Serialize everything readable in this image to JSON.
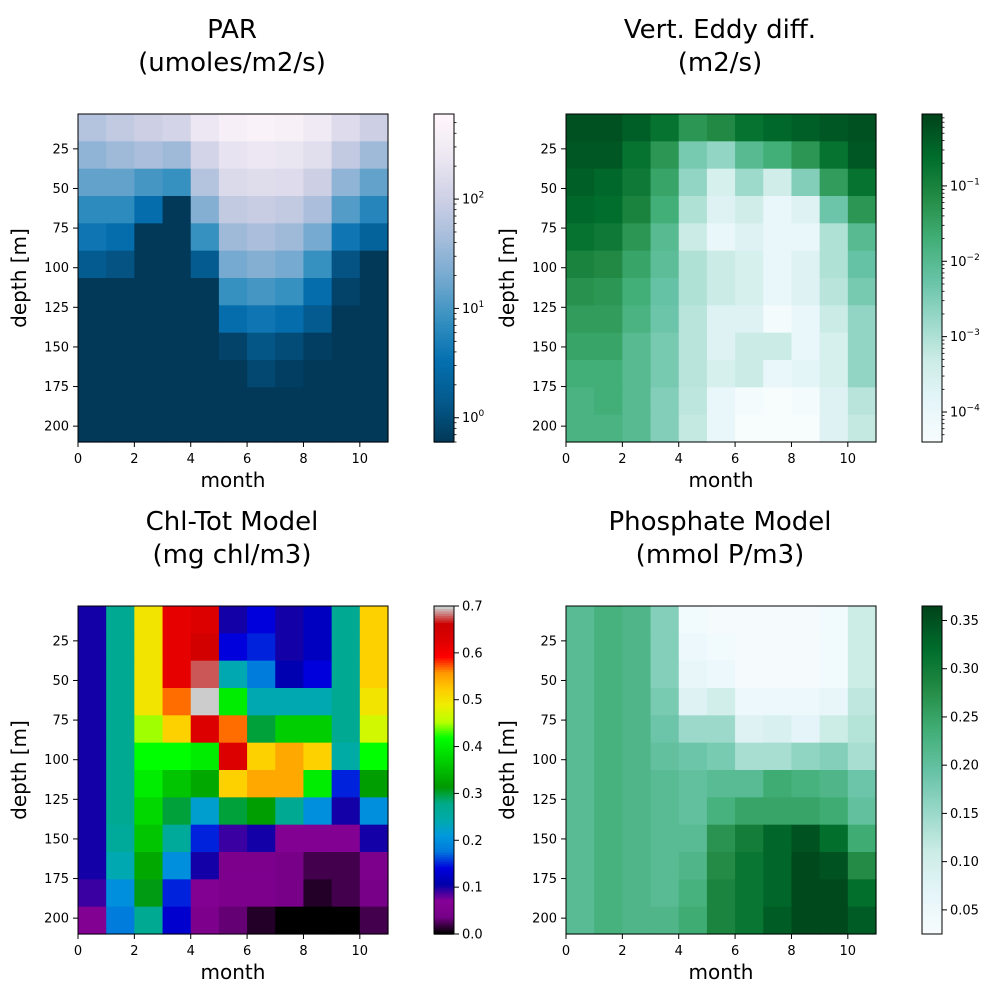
{
  "chart_data": [
    {
      "type": "heatmap",
      "title_line1": "PAR",
      "title_line2": "(umoles/m2/s)",
      "xlabel": "month",
      "ylabel": "depth [m]",
      "x_ticks": [
        "0",
        "2",
        "4",
        "6",
        "8",
        "10"
      ],
      "y_ticks": [
        "25",
        "50",
        "75",
        "100",
        "125",
        "150",
        "175",
        "200"
      ],
      "xlim": [
        0,
        11
      ],
      "ylim": [
        210,
        3
      ],
      "colormap": "PuBu_r",
      "colorscale": "log",
      "colorbar_range": [
        0.6,
        600
      ],
      "colorbar_ticks": [
        {
          "value": 1,
          "base": "10",
          "exp": "0"
        },
        {
          "value": 10,
          "base": "10",
          "exp": "1"
        },
        {
          "value": 100,
          "base": "10",
          "exp": "2"
        }
      ],
      "values": [
        [
          60,
          80,
          100,
          120,
          250,
          400,
          450,
          420,
          300,
          160,
          100
        ],
        [
          30,
          40,
          50,
          40,
          120,
          220,
          250,
          230,
          180,
          80,
          40
        ],
        [
          15,
          15,
          10,
          8,
          60,
          150,
          170,
          160,
          100,
          30,
          15
        ],
        [
          7,
          7,
          3,
          0.6,
          25,
          80,
          90,
          80,
          50,
          12,
          6
        ],
        [
          4,
          3,
          0.6,
          0.6,
          8,
          40,
          50,
          40,
          20,
          4,
          2
        ],
        [
          1.5,
          1.2,
          0.6,
          0.6,
          1.5,
          20,
          25,
          20,
          8,
          1.2,
          0.6
        ],
        [
          0.6,
          0.6,
          0.6,
          0.6,
          0.6,
          8,
          10,
          8,
          3,
          0.8,
          0.6
        ],
        [
          0.6,
          0.6,
          0.6,
          0.6,
          0.6,
          3,
          4,
          3,
          1.5,
          0.6,
          0.6
        ],
        [
          0.6,
          0.6,
          0.6,
          0.6,
          0.6,
          0.8,
          1.3,
          1.0,
          0.7,
          0.6,
          0.6
        ],
        [
          0.6,
          0.6,
          0.6,
          0.6,
          0.6,
          0.6,
          0.9,
          0.7,
          0.6,
          0.6,
          0.6
        ],
        [
          0.6,
          0.6,
          0.6,
          0.6,
          0.6,
          0.6,
          0.6,
          0.6,
          0.6,
          0.6,
          0.6
        ],
        [
          0.6,
          0.6,
          0.6,
          0.6,
          0.6,
          0.6,
          0.6,
          0.6,
          0.6,
          0.6,
          0.6
        ]
      ]
    },
    {
      "type": "heatmap",
      "title_line1": "Vert. Eddy diff.",
      "title_line2": "(m2/s)",
      "xlabel": "month",
      "ylabel": "depth [m]",
      "x_ticks": [
        "0",
        "2",
        "4",
        "6",
        "8",
        "10"
      ],
      "y_ticks": [
        "25",
        "50",
        "75",
        "100",
        "125",
        "150",
        "175",
        "200"
      ],
      "xlim": [
        0,
        11
      ],
      "ylim": [
        210,
        3
      ],
      "colormap": "BuGn",
      "colorscale": "log",
      "colorbar_range": [
        4e-05,
        0.9
      ],
      "colorbar_ticks": [
        {
          "value": 0.0001,
          "base": "10",
          "exp": "−4"
        },
        {
          "value": 0.001,
          "base": "10",
          "exp": "−3"
        },
        {
          "value": 0.01,
          "base": "10",
          "exp": "−2"
        },
        {
          "value": 0.1,
          "base": "10",
          "exp": "−1"
        }
      ],
      "values": [
        [
          0.6,
          0.6,
          0.4,
          0.2,
          0.05,
          0.08,
          0.2,
          0.3,
          0.4,
          0.5,
          0.6
        ],
        [
          0.5,
          0.5,
          0.2,
          0.05,
          0.004,
          0.002,
          0.01,
          0.02,
          0.05,
          0.2,
          0.5
        ],
        [
          0.4,
          0.3,
          0.15,
          0.03,
          0.002,
          0.0003,
          0.0015,
          0.0004,
          0.003,
          0.04,
          0.2
        ],
        [
          0.3,
          0.25,
          0.1,
          0.02,
          0.001,
          0.0002,
          0.0004,
          0.0001,
          0.0002,
          0.005,
          0.05
        ],
        [
          0.2,
          0.15,
          0.05,
          0.01,
          0.0005,
          0.0001,
          0.0002,
          0.0001,
          0.0001,
          0.001,
          0.01
        ],
        [
          0.1,
          0.08,
          0.03,
          0.008,
          0.001,
          0.0005,
          0.0003,
          0.0001,
          0.0002,
          0.001,
          0.006
        ],
        [
          0.06,
          0.05,
          0.02,
          0.006,
          0.001,
          0.0005,
          0.0003,
          0.0001,
          0.0002,
          0.0008,
          0.004
        ],
        [
          0.04,
          0.04,
          0.015,
          0.005,
          0.0008,
          0.0002,
          0.0002,
          5e-05,
          0.0001,
          0.0005,
          0.002
        ],
        [
          0.03,
          0.03,
          0.01,
          0.004,
          0.0008,
          0.0002,
          0.0005,
          0.0005,
          0.0001,
          0.0003,
          0.002
        ],
        [
          0.02,
          0.02,
          0.01,
          0.004,
          0.0008,
          0.0003,
          0.0005,
          0.0001,
          0.00015,
          0.0003,
          0.002
        ],
        [
          0.015,
          0.02,
          0.01,
          0.003,
          0.0007,
          0.0001,
          5e-05,
          4e-05,
          5e-05,
          0.0002,
          0.0008
        ],
        [
          0.015,
          0.015,
          0.01,
          0.003,
          0.0006,
          0.0001,
          4e-05,
          4e-05,
          4e-05,
          0.0002,
          0.0006
        ]
      ]
    },
    {
      "type": "heatmap",
      "title_line1": "Chl-Tot Model",
      "title_line2": "(mg chl/m3)",
      "xlabel": "month",
      "ylabel": "depth [m]",
      "x_ticks": [
        "0",
        "2",
        "4",
        "6",
        "8",
        "10"
      ],
      "y_ticks": [
        "25",
        "50",
        "75",
        "100",
        "125",
        "150",
        "175",
        "200"
      ],
      "xlim": [
        0,
        11
      ],
      "ylim": [
        210,
        3
      ],
      "colormap": "nipy_spectral",
      "colorscale": "linear",
      "colorbar_range": [
        0,
        0.7
      ],
      "colorbar_ticks": [
        {
          "value": 0.0,
          "label": "0.0"
        },
        {
          "value": 0.1,
          "label": "0.1"
        },
        {
          "value": 0.2,
          "label": "0.2"
        },
        {
          "value": 0.3,
          "label": "0.3"
        },
        {
          "value": 0.4,
          "label": "0.4"
        },
        {
          "value": 0.5,
          "label": "0.5"
        },
        {
          "value": 0.6,
          "label": "0.6"
        },
        {
          "value": 0.7,
          "label": "0.7"
        }
      ],
      "values": [
        [
          0.1,
          0.27,
          0.5,
          0.62,
          0.63,
          0.1,
          0.14,
          0.1,
          0.12,
          0.27,
          0.52
        ],
        [
          0.1,
          0.27,
          0.5,
          0.62,
          0.65,
          0.14,
          0.15,
          0.1,
          0.12,
          0.27,
          0.52
        ],
        [
          0.1,
          0.27,
          0.5,
          0.62,
          0.68,
          0.24,
          0.18,
          0.11,
          0.14,
          0.27,
          0.52
        ],
        [
          0.1,
          0.27,
          0.5,
          0.57,
          0.7,
          0.4,
          0.24,
          0.24,
          0.24,
          0.27,
          0.5
        ],
        [
          0.1,
          0.27,
          0.45,
          0.52,
          0.63,
          0.57,
          0.3,
          0.37,
          0.37,
          0.27,
          0.47
        ],
        [
          0.1,
          0.27,
          0.42,
          0.42,
          0.4,
          0.63,
          0.52,
          0.55,
          0.52,
          0.25,
          0.42
        ],
        [
          0.1,
          0.27,
          0.4,
          0.36,
          0.33,
          0.52,
          0.55,
          0.55,
          0.4,
          0.15,
          0.32
        ],
        [
          0.1,
          0.27,
          0.38,
          0.3,
          0.22,
          0.3,
          0.32,
          0.27,
          0.2,
          0.1,
          0.2
        ],
        [
          0.1,
          0.26,
          0.36,
          0.26,
          0.15,
          0.09,
          0.1,
          0.06,
          0.06,
          0.06,
          0.1
        ],
        [
          0.1,
          0.24,
          0.33,
          0.2,
          0.1,
          0.05,
          0.05,
          0.04,
          0.02,
          0.02,
          0.05
        ],
        [
          0.09,
          0.2,
          0.31,
          0.15,
          0.06,
          0.05,
          0.05,
          0.04,
          0.01,
          0.02,
          0.04
        ],
        [
          0.06,
          0.18,
          0.27,
          0.13,
          0.05,
          0.03,
          0.01,
          0.0,
          0.0,
          0.0,
          0.02
        ]
      ]
    },
    {
      "type": "heatmap",
      "title_line1": "Phosphate Model",
      "title_line2": "(mmol P/m3)",
      "xlabel": "month",
      "ylabel": "depth [m]",
      "x_ticks": [
        "0",
        "2",
        "4",
        "6",
        "8",
        "10"
      ],
      "y_ticks": [
        "25",
        "50",
        "75",
        "100",
        "125",
        "150",
        "175",
        "200"
      ],
      "xlim": [
        0,
        11
      ],
      "ylim": [
        210,
        3
      ],
      "colormap": "BuGn",
      "colorscale": "linear",
      "colorbar_range": [
        0.025,
        0.365
      ],
      "colorbar_ticks": [
        {
          "value": 0.05,
          "label": "0.05"
        },
        {
          "value": 0.1,
          "label": "0.10"
        },
        {
          "value": 0.15,
          "label": "0.15"
        },
        {
          "value": 0.2,
          "label": "0.20"
        },
        {
          "value": 0.25,
          "label": "0.25"
        },
        {
          "value": 0.3,
          "label": "0.30"
        },
        {
          "value": 0.35,
          "label": "0.35"
        }
      ],
      "values": [
        [
          0.21,
          0.23,
          0.22,
          0.17,
          0.04,
          0.03,
          0.03,
          0.03,
          0.03,
          0.04,
          0.11
        ],
        [
          0.21,
          0.23,
          0.22,
          0.17,
          0.05,
          0.04,
          0.03,
          0.03,
          0.03,
          0.04,
          0.11
        ],
        [
          0.21,
          0.23,
          0.22,
          0.17,
          0.06,
          0.05,
          0.03,
          0.03,
          0.03,
          0.04,
          0.11
        ],
        [
          0.21,
          0.23,
          0.22,
          0.18,
          0.08,
          0.1,
          0.05,
          0.05,
          0.05,
          0.06,
          0.12
        ],
        [
          0.21,
          0.23,
          0.22,
          0.19,
          0.15,
          0.15,
          0.08,
          0.09,
          0.07,
          0.11,
          0.13
        ],
        [
          0.21,
          0.23,
          0.22,
          0.2,
          0.19,
          0.18,
          0.14,
          0.14,
          0.16,
          0.17,
          0.14
        ],
        [
          0.21,
          0.23,
          0.22,
          0.21,
          0.2,
          0.21,
          0.21,
          0.24,
          0.23,
          0.22,
          0.19
        ],
        [
          0.21,
          0.23,
          0.22,
          0.21,
          0.2,
          0.23,
          0.25,
          0.25,
          0.25,
          0.24,
          0.2
        ],
        [
          0.21,
          0.23,
          0.22,
          0.21,
          0.21,
          0.27,
          0.3,
          0.33,
          0.35,
          0.32,
          0.24
        ],
        [
          0.21,
          0.23,
          0.22,
          0.21,
          0.22,
          0.28,
          0.31,
          0.33,
          0.36,
          0.35,
          0.28
        ],
        [
          0.21,
          0.23,
          0.22,
          0.21,
          0.23,
          0.29,
          0.31,
          0.33,
          0.36,
          0.36,
          0.32
        ],
        [
          0.21,
          0.23,
          0.22,
          0.22,
          0.24,
          0.29,
          0.31,
          0.34,
          0.36,
          0.36,
          0.34
        ]
      ]
    }
  ]
}
